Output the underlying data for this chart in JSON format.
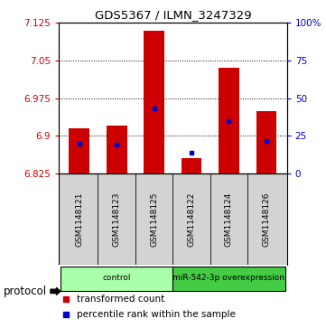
{
  "title": "GDS5367 / ILMN_3247329",
  "samples": [
    "GSM1148121",
    "GSM1148123",
    "GSM1148125",
    "GSM1148122",
    "GSM1148124",
    "GSM1148126"
  ],
  "bar_tops": [
    6.915,
    6.92,
    7.11,
    6.855,
    7.035,
    6.95
  ],
  "blue_markers": [
    6.885,
    6.883,
    6.955,
    6.867,
    6.93,
    6.89
  ],
  "bar_bottom": 6.825,
  "ylim": [
    6.825,
    7.125
  ],
  "yticks": [
    6.825,
    6.9,
    6.975,
    7.05,
    7.125
  ],
  "ytick_labels": [
    "6.825",
    "6.9",
    "6.975",
    "7.05",
    "7.125"
  ],
  "right_yticks": [
    6.825,
    6.9,
    6.975,
    7.05,
    7.125
  ],
  "right_ytick_labels": [
    "0",
    "25",
    "50",
    "75",
    "100%"
  ],
  "bar_color": "#cc0000",
  "blue_color": "#0000cc",
  "bar_width": 0.55,
  "groups": [
    {
      "label": "control",
      "indices": [
        0,
        1,
        2
      ],
      "color": "#aaffaa"
    },
    {
      "label": "miR-542-3p overexpression",
      "indices": [
        3,
        4,
        5
      ],
      "color": "#44cc44"
    }
  ],
  "protocol_label": "protocol",
  "legend_red": "transformed count",
  "legend_blue": "percentile rank within the sample",
  "axis_left_color": "#cc0000",
  "axis_right_color": "#0000cc",
  "sample_cell_bg": "#d3d3d3",
  "grid_color": "black",
  "grid_linestyle": "dotted",
  "grid_linewidth": 0.7
}
